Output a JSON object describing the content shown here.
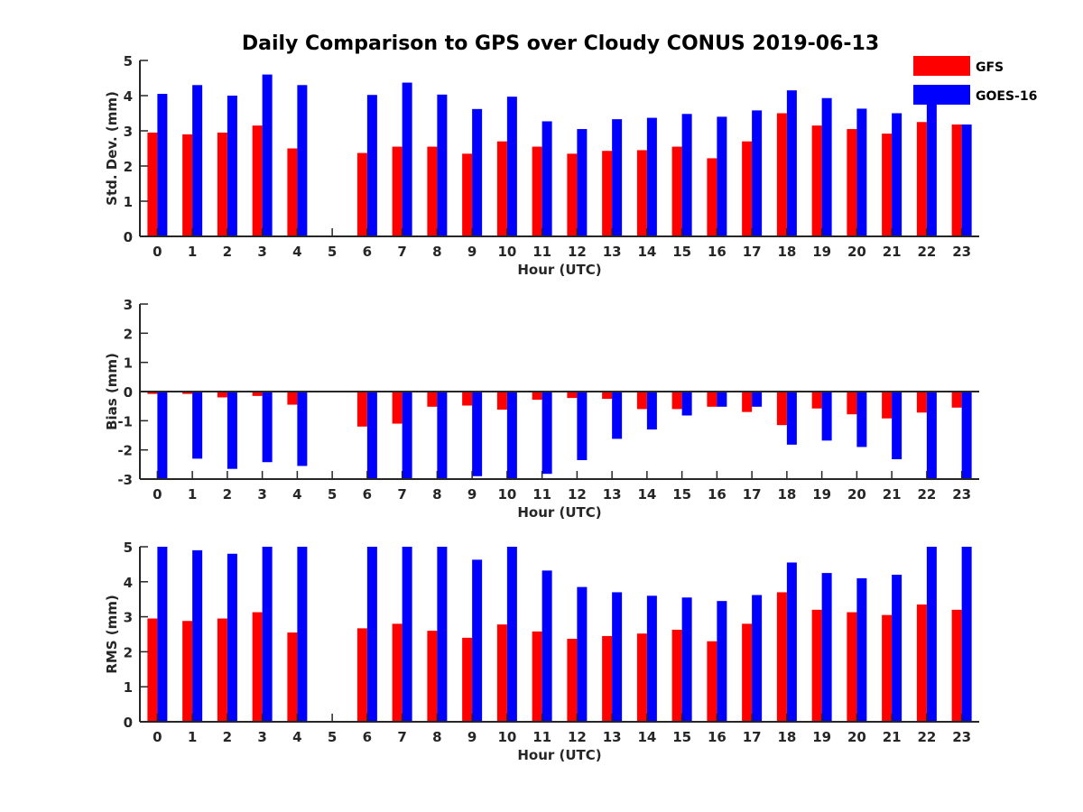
{
  "chart_data": {
    "type": "bar",
    "title": "Daily Comparison to GPS over Cloudy CONUS 2019-06-13",
    "legend": {
      "placement": "top-right",
      "entries": [
        "GFS",
        "GOES-16"
      ]
    },
    "colors": {
      "GFS": "#ff0000",
      "GOES-16": "#0000ff",
      "axis": "#262626"
    },
    "categories": [
      "0",
      "1",
      "2",
      "3",
      "4",
      "5",
      "6",
      "7",
      "8",
      "9",
      "10",
      "11",
      "12",
      "13",
      "14",
      "15",
      "16",
      "17",
      "18",
      "19",
      "20",
      "21",
      "22",
      "23"
    ],
    "panels": [
      {
        "ylabel": "Std. Dev. (mm)",
        "xlabel": "Hour (UTC)",
        "ylim": [
          0,
          5
        ],
        "yticks": [
          "0",
          "1",
          "2",
          "3",
          "4",
          "5"
        ],
        "series": [
          {
            "name": "GFS",
            "values": [
              2.95,
              2.9,
              2.95,
              3.15,
              2.5,
              null,
              2.37,
              2.55,
              2.55,
              2.35,
              2.7,
              2.55,
              2.35,
              2.43,
              2.45,
              2.55,
              2.22,
              2.7,
              3.5,
              3.15,
              3.05,
              2.92,
              3.25,
              3.18
            ]
          },
          {
            "name": "GOES-16",
            "values": [
              4.05,
              4.3,
              4.0,
              4.6,
              4.3,
              null,
              4.02,
              4.37,
              4.03,
              3.62,
              3.97,
              3.27,
              3.05,
              3.33,
              3.37,
              3.48,
              3.4,
              3.58,
              4.15,
              3.93,
              3.63,
              3.5,
              3.78,
              3.18
            ]
          }
        ]
      },
      {
        "ylabel": "Bias (mm)",
        "xlabel": "Hour (UTC)",
        "ylim": [
          -3,
          3
        ],
        "yticks": [
          "-3",
          "-2",
          "-1",
          "0",
          "1",
          "2",
          "3"
        ],
        "series": [
          {
            "name": "GFS",
            "values": [
              -0.08,
              -0.08,
              -0.2,
              -0.15,
              -0.45,
              null,
              -1.2,
              -1.1,
              -0.52,
              -0.48,
              -0.62,
              -0.28,
              -0.22,
              -0.25,
              -0.6,
              -0.6,
              -0.52,
              -0.7,
              -1.15,
              -0.58,
              -0.78,
              -0.92,
              -0.72,
              -0.55
            ]
          },
          {
            "name": "GOES-16",
            "values": [
              -3.0,
              -2.3,
              -2.65,
              -2.42,
              -2.55,
              null,
              -3.0,
              -3.0,
              -3.0,
              -2.9,
              -3.0,
              -2.82,
              -2.35,
              -1.62,
              -1.3,
              -0.82,
              -0.52,
              -0.52,
              -1.82,
              -1.68,
              -1.9,
              -2.32,
              -3.0,
              -3.0
            ]
          }
        ]
      },
      {
        "ylabel": "RMS (mm)",
        "xlabel": "Hour (UTC)",
        "ylim": [
          0,
          5
        ],
        "yticks": [
          "0",
          "1",
          "2",
          "3",
          "4",
          "5"
        ],
        "series": [
          {
            "name": "GFS",
            "values": [
              2.95,
              2.88,
              2.95,
              3.13,
              2.55,
              null,
              2.67,
              2.8,
              2.6,
              2.4,
              2.78,
              2.58,
              2.37,
              2.45,
              2.52,
              2.63,
              2.3,
              2.8,
              3.7,
              3.2,
              3.13,
              3.05,
              3.35,
              3.2
            ]
          },
          {
            "name": "GOES-16",
            "values": [
              5.0,
              4.9,
              4.8,
              5.0,
              5.0,
              null,
              5.0,
              5.0,
              5.0,
              4.63,
              5.0,
              4.32,
              3.85,
              3.7,
              3.6,
              3.55,
              3.45,
              3.62,
              4.55,
              4.25,
              4.1,
              4.2,
              5.0,
              5.0
            ]
          }
        ]
      }
    ]
  }
}
